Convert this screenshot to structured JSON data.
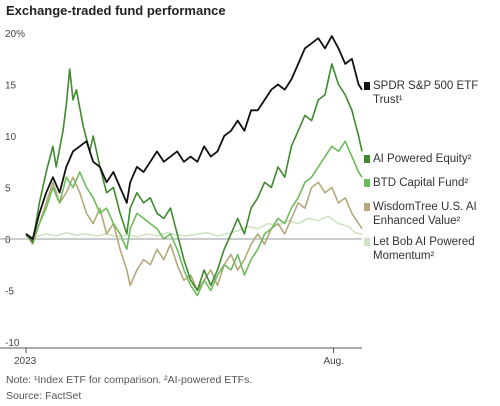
{
  "title": "Exchange-traded fund performance",
  "notes": {
    "note": "Note: ¹Index ETF for comparison. ²AI-powered ETFs.",
    "source": "Source: FactSet"
  },
  "chart_data": {
    "type": "line",
    "title": "Exchange-traded fund performance",
    "ylim": [
      -10,
      20
    ],
    "y_ticks": [
      -10,
      -5,
      0,
      5,
      10,
      15,
      20
    ],
    "y_tick_labels": [
      "-10",
      "-5",
      "0",
      "5",
      "10",
      "15",
      "20%"
    ],
    "x_range": [
      0,
      1
    ],
    "x_ticks": [
      {
        "x": 0.0,
        "label": "2023"
      },
      {
        "x": 0.915,
        "label": "Aug."
      }
    ],
    "grid": false,
    "zero_line": true,
    "legend_position": "right",
    "series": [
      {
        "name": "SPDR S&P 500 ETF Trust¹",
        "color": "#111111",
        "width": 1.8,
        "points": [
          [
            0.0,
            0.5
          ],
          [
            0.02,
            0.0
          ],
          [
            0.04,
            2.5
          ],
          [
            0.06,
            4.5
          ],
          [
            0.08,
            6.0
          ],
          [
            0.1,
            4.5
          ],
          [
            0.12,
            7.0
          ],
          [
            0.14,
            8.5
          ],
          [
            0.16,
            9.0
          ],
          [
            0.18,
            9.5
          ],
          [
            0.2,
            7.5
          ],
          [
            0.22,
            7.0
          ],
          [
            0.24,
            5.5
          ],
          [
            0.26,
            6.5
          ],
          [
            0.28,
            5.0
          ],
          [
            0.3,
            3.5
          ],
          [
            0.31,
            5.5
          ],
          [
            0.33,
            7.0
          ],
          [
            0.35,
            6.5
          ],
          [
            0.37,
            7.5
          ],
          [
            0.39,
            8.5
          ],
          [
            0.41,
            7.5
          ],
          [
            0.43,
            8.0
          ],
          [
            0.45,
            8.5
          ],
          [
            0.47,
            7.5
          ],
          [
            0.49,
            8.0
          ],
          [
            0.51,
            7.5
          ],
          [
            0.53,
            9.0
          ],
          [
            0.55,
            8.0
          ],
          [
            0.57,
            8.5
          ],
          [
            0.59,
            10.0
          ],
          [
            0.61,
            10.5
          ],
          [
            0.63,
            11.5
          ],
          [
            0.65,
            10.5
          ],
          [
            0.67,
            12.5
          ],
          [
            0.69,
            12.5
          ],
          [
            0.71,
            13.5
          ],
          [
            0.73,
            14.5
          ],
          [
            0.75,
            15.0
          ],
          [
            0.77,
            14.5
          ],
          [
            0.79,
            15.5
          ],
          [
            0.81,
            17.0
          ],
          [
            0.83,
            18.5
          ],
          [
            0.85,
            19.0
          ],
          [
            0.87,
            19.5
          ],
          [
            0.89,
            18.5
          ],
          [
            0.91,
            19.7
          ],
          [
            0.93,
            18.5
          ],
          [
            0.95,
            17.0
          ],
          [
            0.97,
            17.5
          ],
          [
            0.99,
            15.0
          ],
          [
            1.0,
            14.5
          ]
        ]
      },
      {
        "name": "AI Powered Equity²",
        "color": "#3f8a2e",
        "width": 1.6,
        "points": [
          [
            0.0,
            0.5
          ],
          [
            0.02,
            -0.3
          ],
          [
            0.04,
            3.5
          ],
          [
            0.06,
            6.5
          ],
          [
            0.08,
            9.0
          ],
          [
            0.09,
            7.0
          ],
          [
            0.11,
            10.5
          ],
          [
            0.12,
            13.0
          ],
          [
            0.13,
            16.5
          ],
          [
            0.14,
            13.5
          ],
          [
            0.15,
            14.5
          ],
          [
            0.17,
            11.0
          ],
          [
            0.19,
            8.5
          ],
          [
            0.2,
            10.0
          ],
          [
            0.22,
            7.0
          ],
          [
            0.24,
            4.5
          ],
          [
            0.26,
            5.0
          ],
          [
            0.28,
            2.5
          ],
          [
            0.3,
            0.5
          ],
          [
            0.31,
            3.0
          ],
          [
            0.33,
            4.5
          ],
          [
            0.35,
            3.5
          ],
          [
            0.37,
            4.0
          ],
          [
            0.39,
            2.5
          ],
          [
            0.41,
            2.0
          ],
          [
            0.43,
            3.0
          ],
          [
            0.45,
            0.5
          ],
          [
            0.47,
            -2.0
          ],
          [
            0.49,
            -4.0
          ],
          [
            0.51,
            -5.0
          ],
          [
            0.53,
            -3.0
          ],
          [
            0.55,
            -4.5
          ],
          [
            0.57,
            -3.0
          ],
          [
            0.59,
            -1.0
          ],
          [
            0.61,
            0.5
          ],
          [
            0.63,
            2.0
          ],
          [
            0.65,
            0.5
          ],
          [
            0.67,
            3.0
          ],
          [
            0.69,
            4.0
          ],
          [
            0.71,
            5.5
          ],
          [
            0.73,
            5.0
          ],
          [
            0.75,
            7.0
          ],
          [
            0.77,
            6.0
          ],
          [
            0.79,
            9.0
          ],
          [
            0.81,
            10.5
          ],
          [
            0.83,
            12.0
          ],
          [
            0.85,
            11.5
          ],
          [
            0.87,
            13.5
          ],
          [
            0.89,
            14.0
          ],
          [
            0.91,
            17.0
          ],
          [
            0.93,
            15.0
          ],
          [
            0.95,
            14.0
          ],
          [
            0.97,
            12.5
          ],
          [
            0.99,
            10.0
          ],
          [
            1.0,
            8.5
          ]
        ]
      },
      {
        "name": "BTD Capital Fund²",
        "color": "#6dbb5a",
        "width": 1.6,
        "points": [
          [
            0.0,
            0.3
          ],
          [
            0.02,
            0.0
          ],
          [
            0.04,
            1.5
          ],
          [
            0.06,
            3.0
          ],
          [
            0.08,
            5.0
          ],
          [
            0.1,
            3.5
          ],
          [
            0.12,
            6.0
          ],
          [
            0.14,
            5.0
          ],
          [
            0.16,
            6.5
          ],
          [
            0.18,
            5.0
          ],
          [
            0.2,
            4.0
          ],
          [
            0.22,
            2.5
          ],
          [
            0.24,
            3.0
          ],
          [
            0.26,
            1.5
          ],
          [
            0.28,
            0.5
          ],
          [
            0.3,
            -1.0
          ],
          [
            0.31,
            1.0
          ],
          [
            0.33,
            2.5
          ],
          [
            0.35,
            2.0
          ],
          [
            0.37,
            1.5
          ],
          [
            0.39,
            1.0
          ],
          [
            0.41,
            0.0
          ],
          [
            0.43,
            0.5
          ],
          [
            0.45,
            -1.0
          ],
          [
            0.47,
            -3.0
          ],
          [
            0.49,
            -4.5
          ],
          [
            0.51,
            -5.5
          ],
          [
            0.53,
            -4.0
          ],
          [
            0.55,
            -5.0
          ],
          [
            0.57,
            -3.5
          ],
          [
            0.59,
            -2.5
          ],
          [
            0.61,
            -3.0
          ],
          [
            0.63,
            -1.5
          ],
          [
            0.65,
            -3.5
          ],
          [
            0.67,
            -2.0
          ],
          [
            0.69,
            -1.0
          ],
          [
            0.71,
            0.5
          ],
          [
            0.73,
            1.0
          ],
          [
            0.75,
            2.0
          ],
          [
            0.77,
            1.5
          ],
          [
            0.79,
            3.0
          ],
          [
            0.81,
            4.0
          ],
          [
            0.83,
            5.5
          ],
          [
            0.85,
            6.0
          ],
          [
            0.87,
            7.0
          ],
          [
            0.89,
            8.0
          ],
          [
            0.91,
            9.0
          ],
          [
            0.93,
            8.5
          ],
          [
            0.95,
            9.5
          ],
          [
            0.97,
            8.0
          ],
          [
            0.99,
            6.5
          ],
          [
            1.0,
            6.0
          ]
        ]
      },
      {
        "name": "WisdomTree U.S. AI Enhanced Value²",
        "color": "#b5a87a",
        "width": 1.6,
        "points": [
          [
            0.0,
            0.5
          ],
          [
            0.02,
            -0.5
          ],
          [
            0.04,
            1.5
          ],
          [
            0.06,
            3.5
          ],
          [
            0.08,
            5.5
          ],
          [
            0.1,
            3.5
          ],
          [
            0.12,
            4.5
          ],
          [
            0.14,
            6.0
          ],
          [
            0.16,
            4.5
          ],
          [
            0.18,
            2.5
          ],
          [
            0.2,
            1.5
          ],
          [
            0.22,
            3.0
          ],
          [
            0.24,
            0.5
          ],
          [
            0.26,
            1.5
          ],
          [
            0.28,
            -1.0
          ],
          [
            0.3,
            -3.0
          ],
          [
            0.31,
            -4.5
          ],
          [
            0.33,
            -3.0
          ],
          [
            0.35,
            -2.0
          ],
          [
            0.37,
            -2.5
          ],
          [
            0.39,
            -1.0
          ],
          [
            0.41,
            -2.0
          ],
          [
            0.43,
            -0.5
          ],
          [
            0.45,
            -2.5
          ],
          [
            0.47,
            -4.0
          ],
          [
            0.49,
            -3.5
          ],
          [
            0.51,
            -5.0
          ],
          [
            0.53,
            -4.0
          ],
          [
            0.55,
            -3.0
          ],
          [
            0.57,
            -4.5
          ],
          [
            0.59,
            -2.5
          ],
          [
            0.61,
            -1.5
          ],
          [
            0.63,
            -3.0
          ],
          [
            0.65,
            -2.0
          ],
          [
            0.67,
            -0.5
          ],
          [
            0.69,
            0.5
          ],
          [
            0.71,
            -0.5
          ],
          [
            0.73,
            1.0
          ],
          [
            0.75,
            1.5
          ],
          [
            0.77,
            0.5
          ],
          [
            0.79,
            2.0
          ],
          [
            0.81,
            3.5
          ],
          [
            0.83,
            3.0
          ],
          [
            0.85,
            5.0
          ],
          [
            0.87,
            5.5
          ],
          [
            0.89,
            4.5
          ],
          [
            0.91,
            5.0
          ],
          [
            0.93,
            3.5
          ],
          [
            0.95,
            4.0
          ],
          [
            0.97,
            2.5
          ],
          [
            0.99,
            1.5
          ],
          [
            1.0,
            1.0
          ]
        ]
      },
      {
        "name": "Let Bob AI Powered Momentum²",
        "color": "#cfe3c4",
        "width": 1.6,
        "points": [
          [
            0.0,
            0.3
          ],
          [
            0.03,
            0.2
          ],
          [
            0.06,
            0.5
          ],
          [
            0.09,
            0.3
          ],
          [
            0.12,
            0.6
          ],
          [
            0.15,
            0.4
          ],
          [
            0.18,
            0.5
          ],
          [
            0.21,
            0.3
          ],
          [
            0.24,
            0.5
          ],
          [
            0.27,
            0.2
          ],
          [
            0.3,
            0.4
          ],
          [
            0.33,
            0.2
          ],
          [
            0.36,
            0.5
          ],
          [
            0.39,
            0.3
          ],
          [
            0.42,
            0.6
          ],
          [
            0.45,
            0.4
          ],
          [
            0.48,
            0.3
          ],
          [
            0.51,
            0.5
          ],
          [
            0.54,
            0.6
          ],
          [
            0.57,
            0.3
          ],
          [
            0.6,
            0.5
          ],
          [
            0.63,
            0.8
          ],
          [
            0.66,
            1.2
          ],
          [
            0.69,
            1.0
          ],
          [
            0.72,
            1.5
          ],
          [
            0.75,
            1.3
          ],
          [
            0.78,
            1.8
          ],
          [
            0.81,
            1.5
          ],
          [
            0.84,
            2.0
          ],
          [
            0.87,
            1.8
          ],
          [
            0.9,
            2.2
          ],
          [
            0.93,
            1.5
          ],
          [
            0.96,
            1.2
          ],
          [
            0.98,
            0.6
          ],
          [
            1.0,
            0.5
          ]
        ]
      }
    ]
  }
}
